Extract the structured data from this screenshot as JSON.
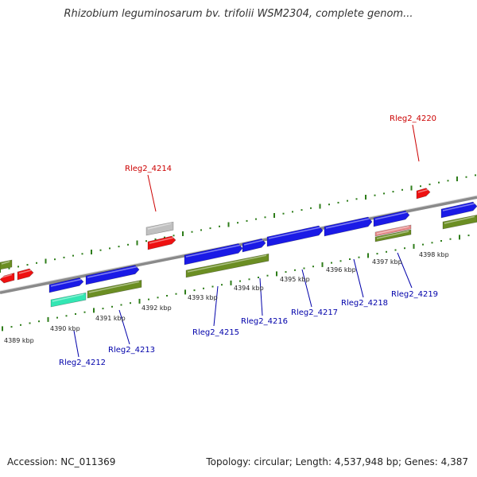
{
  "title": "Rhizobium leguminosarum bv. trifolii WSM2304, complete genom...",
  "footer": {
    "accession": "Accession: NC_011369",
    "summary": "Topology: circular; Length: 4,537,948 bp; Genes: 4,387"
  },
  "scale_labels": [
    "4389 kbp",
    "4390 kbp",
    "4391 kbp",
    "4392 kbp",
    "4393 kbp",
    "4394 kbp",
    "4395 kbp",
    "4396 kbp",
    "4397 kbp",
    "4398 kbp"
  ],
  "gene_labels": [
    {
      "text": "Rleg2_4214",
      "color": "#cc0000"
    },
    {
      "text": "Rleg2_4220",
      "color": "#cc0000"
    },
    {
      "text": "Rleg2_4212",
      "color": "#0000aa"
    },
    {
      "text": "Rleg2_4213",
      "color": "#0000aa"
    },
    {
      "text": "Rleg2_4215",
      "color": "#0000aa"
    },
    {
      "text": "Rleg2_4216",
      "color": "#0000aa"
    },
    {
      "text": "Rleg2_4217",
      "color": "#0000aa"
    },
    {
      "text": "Rleg2_4218",
      "color": "#0000aa"
    },
    {
      "text": "Rleg2_4219",
      "color": "#0000aa"
    }
  ],
  "colors": {
    "backbone": "#8a8a8a",
    "tick": "#2e7d1a",
    "cds_blue": "#1a1ae6",
    "cds_green": "#6b8e23",
    "cds_red": "#ee1111",
    "cds_grey": "#c0c0c0",
    "cds_pink": "#e88a8a",
    "cds_teal": "#33e6b3",
    "label_red": "#cc0000",
    "label_blue": "#0000aa"
  }
}
